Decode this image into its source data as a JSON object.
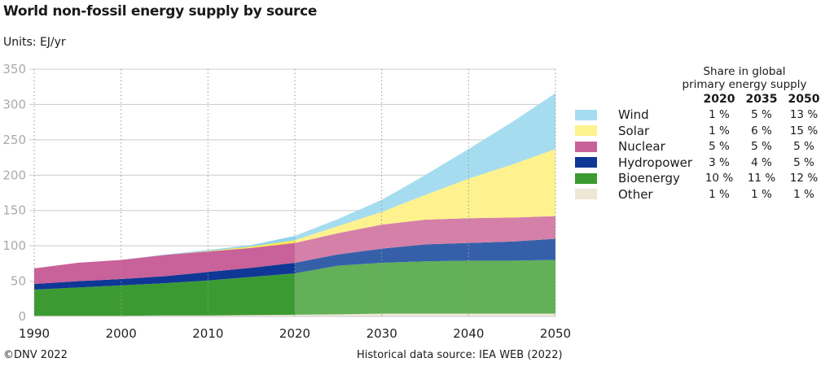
{
  "title": "World non-fossil energy supply by source",
  "units": "Units: EJ/yr",
  "footer_left": "©DNV 2022",
  "footer_right": "Historical data source: IEA WEB (2022)",
  "chart_data": {
    "type": "area",
    "stacked": true,
    "historical_until": 2020,
    "x": [
      1990,
      1995,
      2000,
      2005,
      2010,
      2015,
      2020,
      2025,
      2030,
      2035,
      2040,
      2045,
      2050
    ],
    "xticks": [
      "1990",
      "2000",
      "2010",
      "2020",
      "2030",
      "2040",
      "2050"
    ],
    "yticks": [
      "0",
      "50",
      "100",
      "150",
      "200",
      "250",
      "300",
      "350"
    ],
    "ylim": [
      0,
      350
    ],
    "grid": true,
    "series": [
      {
        "name": "Other",
        "color": "#efe6d6",
        "forecast_color": "#f1e9db",
        "values": [
          1,
          1,
          1,
          1.5,
          1.5,
          2,
          2.5,
          3,
          4,
          4,
          4,
          4,
          4
        ]
      },
      {
        "name": "Bioenergy",
        "color": "#3c9a32",
        "forecast_color": "#62b058",
        "values": [
          37,
          40,
          43,
          45.5,
          49.5,
          54,
          58.5,
          69,
          72,
          74,
          75,
          75,
          76
        ]
      },
      {
        "name": "Hydropower",
        "color": "#0f3796",
        "forecast_color": "#3560a9",
        "values": [
          8,
          9,
          9,
          10,
          12,
          13,
          15,
          16,
          20,
          24,
          25,
          27,
          30
        ]
      },
      {
        "name": "Nuclear",
        "color": "#c9619a",
        "forecast_color": "#d580a8",
        "values": [
          22,
          26,
          27,
          30,
          29,
          28,
          28,
          30,
          34,
          35,
          35,
          34,
          32
        ]
      },
      {
        "name": "Solar",
        "color": "#fbe94e",
        "forecast_color": "#fdf28e",
        "values": [
          0,
          0,
          0,
          0,
          0.5,
          2,
          4,
          10,
          18,
          35,
          56,
          75,
          95
        ]
      },
      {
        "name": "Wind",
        "color": "#8fd3ec",
        "forecast_color": "#a6dcef",
        "values": [
          0,
          0,
          0,
          0.5,
          1.5,
          2,
          6,
          10,
          17,
          28,
          42,
          60,
          79
        ]
      }
    ],
    "legend": {
      "title_line1": "Share in global",
      "title_line2": "primary energy supply",
      "columns": [
        "2020",
        "2035",
        "2050"
      ],
      "rows": [
        {
          "name": "Wind",
          "color": "#a6dcef",
          "shares": [
            "1 %",
            "5 %",
            "13 %"
          ]
        },
        {
          "name": "Solar",
          "color": "#fdf28e",
          "shares": [
            "1 %",
            "6 %",
            "15 %"
          ]
        },
        {
          "name": "Nuclear",
          "color": "#c9619a",
          "shares": [
            "5 %",
            "5 %",
            "5 %"
          ]
        },
        {
          "name": "Hydropower",
          "color": "#0f3796",
          "shares": [
            "3 %",
            "4 %",
            "5 %"
          ]
        },
        {
          "name": "Bioenergy",
          "color": "#3c9a32",
          "shares": [
            "10 %",
            "11 %",
            "12 %"
          ]
        },
        {
          "name": "Other",
          "color": "#efe6d6",
          "shares": [
            "1 %",
            "1 %",
            "1 %"
          ]
        }
      ]
    }
  }
}
